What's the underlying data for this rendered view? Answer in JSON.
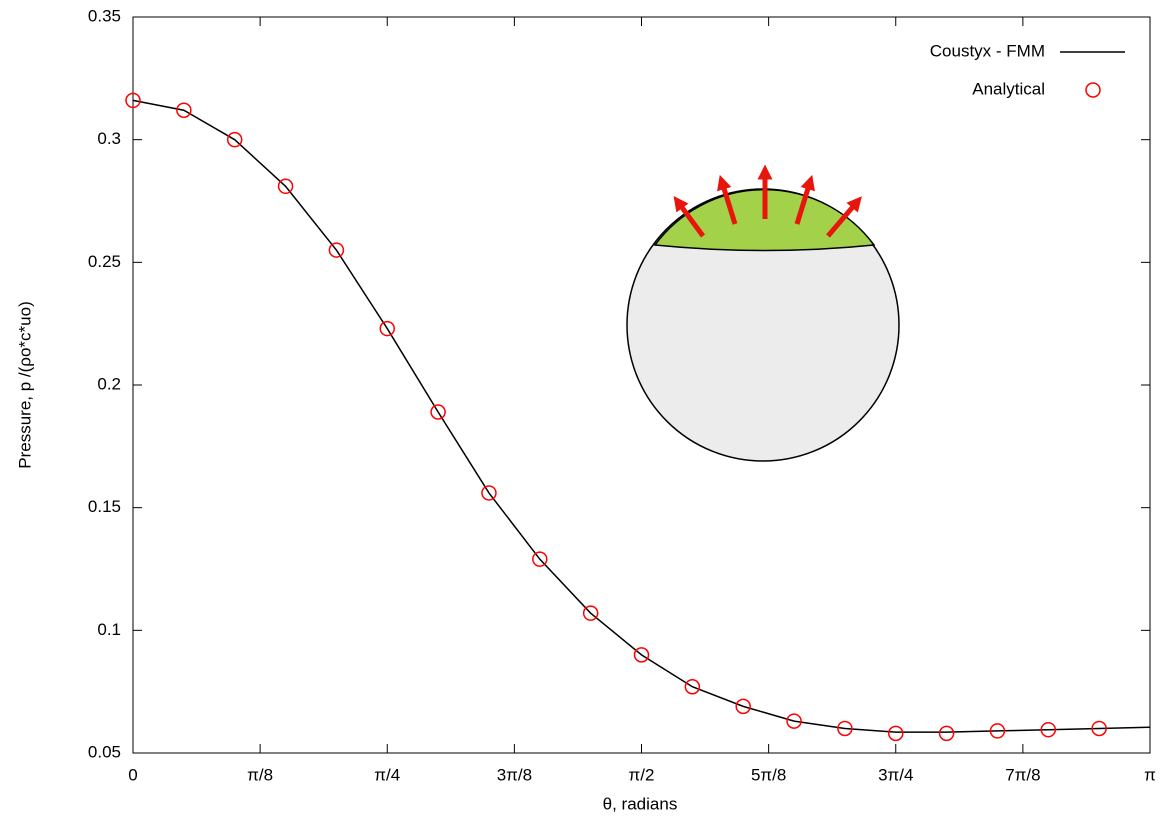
{
  "chart_data": {
    "type": "line",
    "x_label": "θ, radians",
    "y_label": "Pressure, p /(ρo*c*uo)",
    "xlim": [
      0,
      3.14159
    ],
    "ylim": [
      0.05,
      0.35
    ],
    "xticks": [
      0,
      {
        "value": 0.392699,
        "label": "π/8"
      },
      {
        "value": 0.785398,
        "label": "π/4"
      },
      {
        "value": 1.178097,
        "label": "3π/8"
      },
      {
        "value": 1.570796,
        "label": "π/2"
      },
      {
        "value": 1.963495,
        "label": "5π/8"
      },
      {
        "value": 2.356194,
        "label": "3π/4"
      },
      {
        "value": 2.748894,
        "label": "7π/8"
      },
      {
        "value": 3.14159,
        "label": "π"
      }
    ],
    "yticks": [
      0.05,
      0.1,
      0.15,
      0.2,
      0.25,
      0.3,
      0.35
    ],
    "legend": "top-right",
    "series": [
      {
        "name": "Coustyx - FMM",
        "type": "line",
        "color": "#000000",
        "x": [
          0,
          0.15708,
          0.31416,
          0.47124,
          0.62832,
          0.7854,
          0.94248,
          1.09956,
          1.25664,
          1.41372,
          1.5708,
          1.72788,
          1.88496,
          2.04204,
          2.19911,
          2.35619,
          2.51327,
          2.67035,
          2.82743,
          2.98451,
          3.14159
        ],
        "values": [
          0.316,
          0.312,
          0.3,
          0.281,
          0.255,
          0.223,
          0.189,
          0.156,
          0.129,
          0.107,
          0.09,
          0.077,
          0.069,
          0.063,
          0.06,
          0.0585,
          0.0585,
          0.059,
          0.0595,
          0.06,
          0.0605
        ]
      },
      {
        "name": "Analytical",
        "type": "scatter",
        "color": "#ff0000",
        "x": [
          0,
          0.15708,
          0.31416,
          0.47124,
          0.62832,
          0.7854,
          0.94248,
          1.09956,
          1.25664,
          1.41372,
          1.5708,
          1.72788,
          1.88496,
          2.04204,
          2.19911,
          2.35619,
          2.51327,
          2.67035,
          2.82743,
          2.98451
        ],
        "values": [
          0.316,
          0.312,
          0.3,
          0.281,
          0.255,
          0.223,
          0.189,
          0.156,
          0.129,
          0.107,
          0.09,
          0.077,
          0.069,
          0.063,
          0.06,
          0.058,
          0.058,
          0.059,
          0.0595,
          0.06
        ]
      }
    ]
  }
}
